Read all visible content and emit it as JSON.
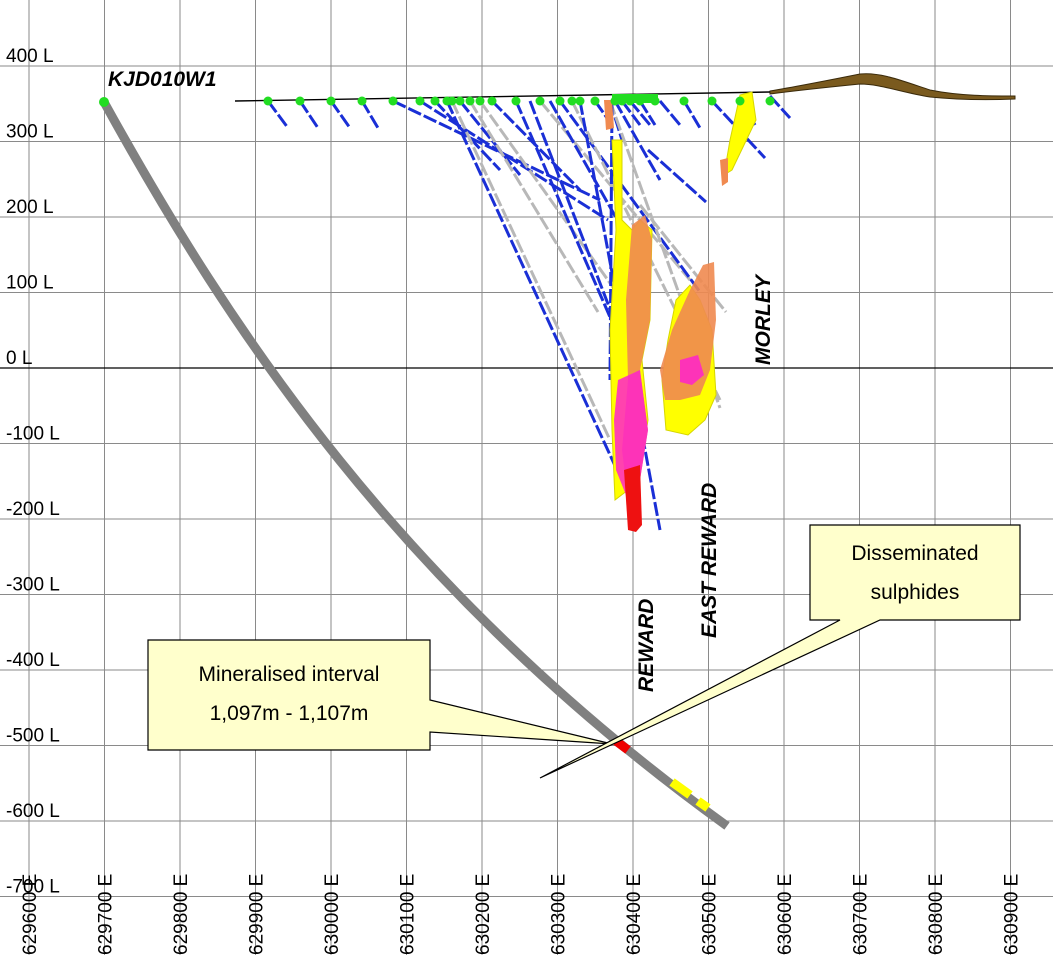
{
  "levels": [
    {
      "label": "400 L",
      "value": 400
    },
    {
      "label": "300 L",
      "value": 300
    },
    {
      "label": "200 L",
      "value": 200
    },
    {
      "label": "100 L",
      "value": 100
    },
    {
      "label": "0 L",
      "value": 0
    },
    {
      "label": "-100 L",
      "value": -100
    },
    {
      "label": "-200 L",
      "value": -200
    },
    {
      "label": "-300 L",
      "value": -300
    },
    {
      "label": "-400 L",
      "value": -400
    },
    {
      "label": "-500 L",
      "value": -500
    },
    {
      "label": "-600 L",
      "value": -600
    },
    {
      "label": "-700 L",
      "value": -700
    }
  ],
  "eastings": [
    {
      "label": "629600 E",
      "value": 629600
    },
    {
      "label": "629700 E",
      "value": 629700
    },
    {
      "label": "629800 E",
      "value": 629800
    },
    {
      "label": "629900 E",
      "value": 629900
    },
    {
      "label": "630000 E",
      "value": 630000
    },
    {
      "label": "630100 E",
      "value": 630100
    },
    {
      "label": "630200 E",
      "value": 630200
    },
    {
      "label": "630300 E",
      "value": 630300
    },
    {
      "label": "630400 E",
      "value": 630400
    },
    {
      "label": "630500 E",
      "value": 630500
    },
    {
      "label": "630600 E",
      "value": 630600
    },
    {
      "label": "630700 E",
      "value": 630700
    },
    {
      "label": "630800 E",
      "value": 630800
    },
    {
      "label": "630900 E",
      "value": 630900
    }
  ],
  "hole": {
    "name": "KJD010W1"
  },
  "deposits": {
    "reward": "REWARD",
    "east_reward": "EAST REWARD",
    "morley": "MORLEY"
  },
  "callouts": {
    "mineralised_line1": "Mineralised interval",
    "mineralised_line2": "1,097m - 1,107m",
    "disseminated_line1": "Disseminated",
    "disseminated_line2": "sulphides"
  },
  "colors": {
    "drillhole": "#808080",
    "historic_holes": "#1a2fd6",
    "historic_gray": "#b8b8b8",
    "collars": "#22dd22",
    "mineralised": "#ee0000",
    "disseminated": "#ffff00",
    "zone_yellow": "#ffff00",
    "zone_orange": "#f08a50",
    "zone_magenta": "#ff22cc",
    "zone_red": "#ee1111",
    "topography": "#7a5a1e",
    "callout_fill": "#ffffcc"
  }
}
